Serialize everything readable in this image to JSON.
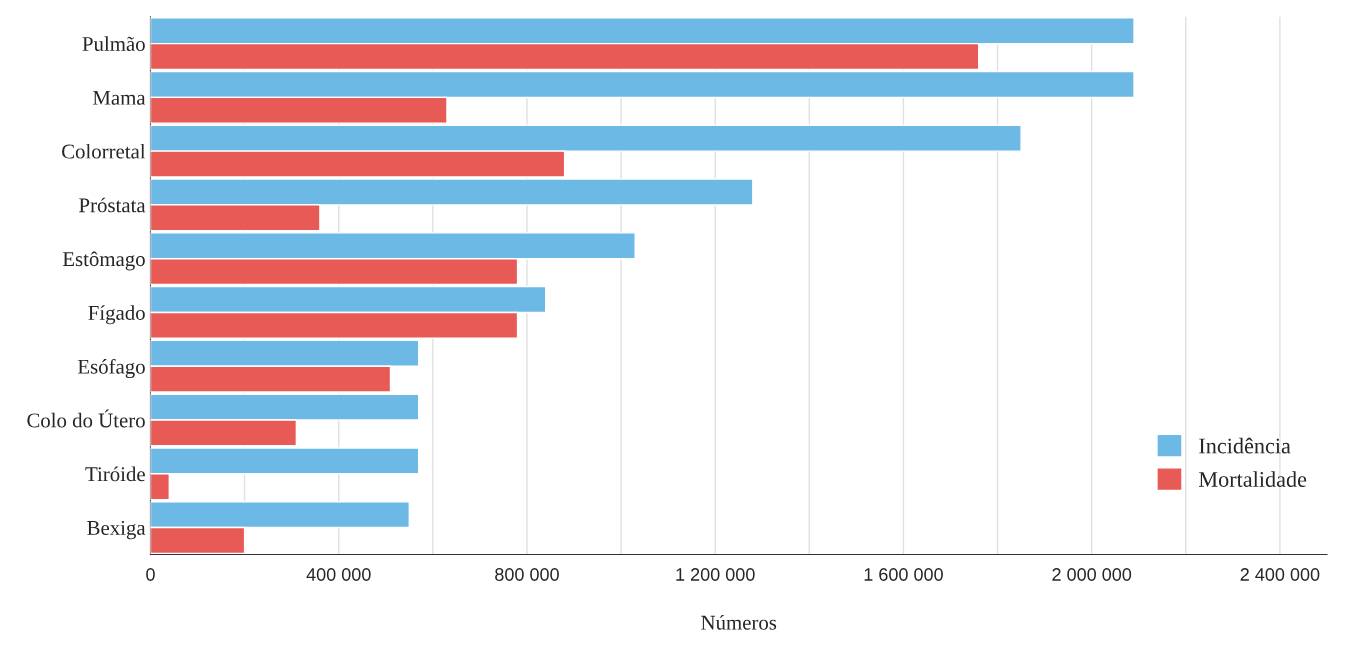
{
  "chart_data": {
    "type": "bar",
    "orientation": "horizontal",
    "xlabel": "Números",
    "categories": [
      "Pulmão",
      "Mama",
      "Colorretal",
      "Próstata",
      "Estômago",
      "Fígado",
      "Esófago",
      "Colo do Útero",
      "Tiróide",
      "Bexiga"
    ],
    "series": [
      {
        "name": "Incidência",
        "color": "#6cb9e6",
        "values": [
          2090000,
          2090000,
          1850000,
          1280000,
          1030000,
          840000,
          570000,
          570000,
          570000,
          550000
        ]
      },
      {
        "name": "Mortalidade",
        "color": "#e85a55",
        "values": [
          1760000,
          630000,
          880000,
          360000,
          780000,
          780000,
          510000,
          310000,
          40000,
          200000
        ]
      }
    ],
    "xlim": [
      0,
      2500000
    ],
    "xticks": [
      {
        "value": 0,
        "label": "0"
      },
      {
        "value": 200000,
        "label": null
      },
      {
        "value": 400000,
        "label": "400 000"
      },
      {
        "value": 600000,
        "label": null
      },
      {
        "value": 800000,
        "label": "800 000"
      },
      {
        "value": 1000000,
        "label": null
      },
      {
        "value": 1200000,
        "label": "1 200 000"
      },
      {
        "value": 1400000,
        "label": null
      },
      {
        "value": 1600000,
        "label": "1 600 000"
      },
      {
        "value": 1800000,
        "label": null
      },
      {
        "value": 2000000,
        "label": "2 000 000"
      },
      {
        "value": 2200000,
        "label": null
      },
      {
        "value": 2400000,
        "label": "2 400 000"
      }
    ],
    "grid": "x",
    "legend": "bottom right"
  }
}
